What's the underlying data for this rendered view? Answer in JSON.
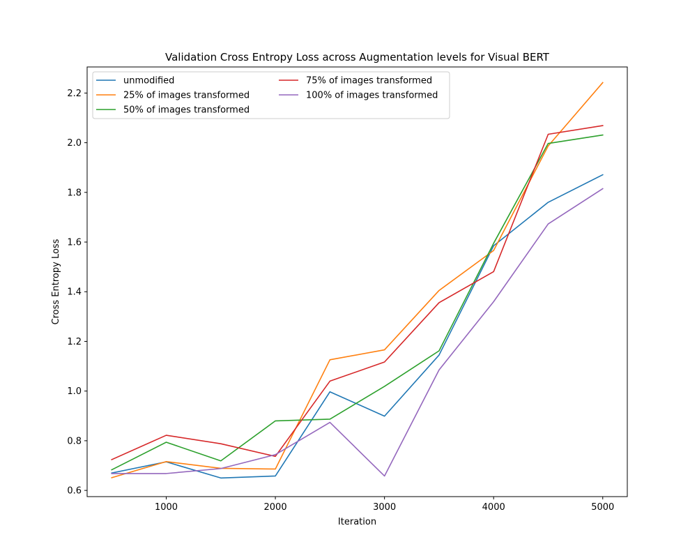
{
  "chart_data": {
    "type": "line",
    "title": "Validation Cross Entropy Loss across Augmentation levels for Visual BERT",
    "xlabel": "Iteration",
    "ylabel": "Cross Entropy Loss",
    "xlim": [
      275,
      5225
    ],
    "ylim": [
      0.575,
      2.305
    ],
    "xticks": [
      1000,
      2000,
      3000,
      4000,
      5000
    ],
    "xtick_labels": [
      "1000",
      "2000",
      "3000",
      "4000",
      "5000"
    ],
    "yticks": [
      0.6,
      0.8,
      1.0,
      1.2,
      1.4,
      1.6,
      1.8,
      2.0,
      2.2
    ],
    "ytick_labels": [
      "0.6",
      "0.8",
      "1.0",
      "1.2",
      "1.4",
      "1.6",
      "1.8",
      "2.0",
      "2.2"
    ],
    "grid": false,
    "legend_position": "top-left",
    "x": [
      500,
      1000,
      1500,
      2000,
      2500,
      3000,
      3500,
      4000,
      4500,
      5000
    ],
    "series": [
      {
        "name": "unmodified",
        "color": "#1f77b4",
        "values": [
          0.67,
          0.715,
          0.65,
          0.658,
          0.997,
          0.899,
          1.145,
          1.585,
          1.76,
          1.871
        ]
      },
      {
        "name": "25% of images transformed",
        "color": "#ff7f0e",
        "values": [
          0.651,
          0.716,
          0.689,
          0.686,
          1.126,
          1.166,
          1.405,
          1.566,
          1.987,
          2.242
        ]
      },
      {
        "name": "50% of images transformed",
        "color": "#2ca02c",
        "values": [
          0.683,
          0.794,
          0.719,
          0.88,
          0.887,
          1.019,
          1.162,
          1.595,
          1.997,
          2.031
        ]
      },
      {
        "name": "75% of images transformed",
        "color": "#d62728",
        "values": [
          0.724,
          0.822,
          0.788,
          0.737,
          1.04,
          1.117,
          1.356,
          1.481,
          2.034,
          2.069
        ]
      },
      {
        "name": "100% of images transformed",
        "color": "#9467bd",
        "values": [
          0.668,
          0.668,
          0.688,
          0.744,
          0.874,
          0.658,
          1.085,
          1.36,
          1.673,
          1.815
        ]
      }
    ]
  }
}
